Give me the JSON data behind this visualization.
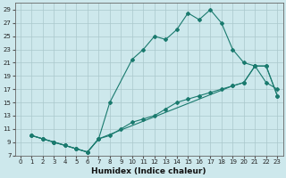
{
  "title": "",
  "xlabel": "Humidex (Indice chaleur)",
  "bg_color": "#cde8ec",
  "line_color": "#1a7a6e",
  "grid_color": "#aac8cc",
  "xlim": [
    -0.5,
    23.5
  ],
  "ylim": [
    7,
    30
  ],
  "xticks": [
    0,
    1,
    2,
    3,
    4,
    5,
    6,
    7,
    8,
    9,
    10,
    11,
    12,
    13,
    14,
    15,
    16,
    17,
    18,
    19,
    20,
    21,
    22,
    23
  ],
  "yticks": [
    7,
    9,
    11,
    13,
    15,
    17,
    19,
    21,
    23,
    25,
    27,
    29
  ],
  "line1_x": [
    1,
    2,
    3,
    4,
    5,
    6,
    7,
    8,
    10,
    11,
    12,
    13,
    14,
    15,
    16,
    17,
    18,
    19,
    20,
    21,
    22,
    23
  ],
  "line1_y": [
    10,
    9.5,
    9,
    8.5,
    8,
    7.5,
    9.5,
    15,
    21.5,
    23,
    25,
    24.5,
    26,
    28.5,
    27.5,
    29,
    27,
    23,
    21,
    20.5,
    18,
    17
  ],
  "line2_x": [
    1,
    2,
    3,
    4,
    5,
    6,
    7,
    8,
    9,
    10,
    11,
    12,
    13,
    14,
    15,
    16,
    17,
    18,
    19,
    20,
    21,
    22,
    23
  ],
  "line2_y": [
    10,
    9.5,
    9,
    8.5,
    8,
    7.5,
    9.5,
    10,
    11,
    12,
    12.5,
    13,
    14,
    15,
    15.5,
    16,
    16.5,
    17,
    17.5,
    18,
    20.5,
    20.5,
    16
  ],
  "line3_x": [
    1,
    2,
    3,
    4,
    5,
    6,
    7,
    19,
    20,
    21,
    22,
    23
  ],
  "line3_y": [
    10,
    9.5,
    9,
    8.5,
    8,
    7.5,
    9.5,
    17.5,
    18,
    20.5,
    20.5,
    16
  ]
}
